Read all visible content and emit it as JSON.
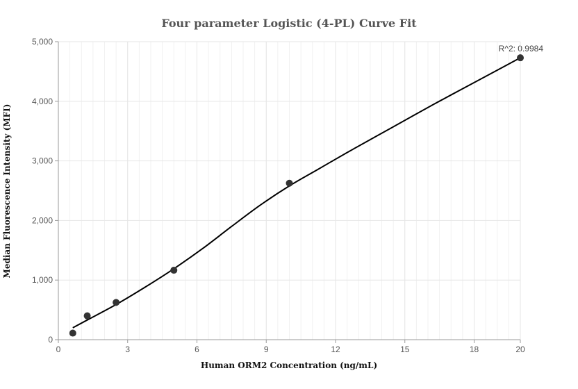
{
  "chart_data": {
    "type": "scatter",
    "title": "Four parameter Logistic (4-PL) Curve Fit",
    "xlabel": "Human ORM2 Concentration (ng/mL)",
    "ylabel": "Median Fluorescence Intensity (MFI)",
    "xlim": [
      0,
      20
    ],
    "ylim": [
      0,
      5000
    ],
    "x_ticks": [
      0,
      3,
      6,
      9,
      12,
      15,
      18,
      20
    ],
    "x_tick_labels": [
      "0",
      "3",
      "6",
      "9",
      "12",
      "15",
      "18",
      "20"
    ],
    "y_ticks": [
      0,
      1000,
      2000,
      3000,
      4000,
      5000
    ],
    "y_tick_labels": [
      "0",
      "1,000",
      "2,000",
      "3,000",
      "4,000",
      "5,000"
    ],
    "points": [
      {
        "x": 0.625,
        "y": 110
      },
      {
        "x": 1.25,
        "y": 400
      },
      {
        "x": 2.5,
        "y": 625
      },
      {
        "x": 5,
        "y": 1165
      },
      {
        "x": 10,
        "y": 2625
      },
      {
        "x": 20,
        "y": 4730
      }
    ],
    "fit_curve": [
      {
        "x": 0.625,
        "y": 200
      },
      {
        "x": 1.25,
        "y": 330
      },
      {
        "x": 2.5,
        "y": 590
      },
      {
        "x": 3.75,
        "y": 880
      },
      {
        "x": 5,
        "y": 1190
      },
      {
        "x": 6.25,
        "y": 1530
      },
      {
        "x": 7.5,
        "y": 1900
      },
      {
        "x": 8.75,
        "y": 2260
      },
      {
        "x": 10,
        "y": 2580
      },
      {
        "x": 11.25,
        "y": 2860
      },
      {
        "x": 12.5,
        "y": 3140
      },
      {
        "x": 13.75,
        "y": 3410
      },
      {
        "x": 15,
        "y": 3680
      },
      {
        "x": 16.25,
        "y": 3950
      },
      {
        "x": 17.5,
        "y": 4210
      },
      {
        "x": 18.75,
        "y": 4470
      },
      {
        "x": 20,
        "y": 4730
      }
    ],
    "annotation": "R^2: 0.9984",
    "grid": true,
    "colors": {
      "point": "#333333",
      "curve": "#000000",
      "grid": "#e6e6e6",
      "axis": "#999999"
    }
  }
}
